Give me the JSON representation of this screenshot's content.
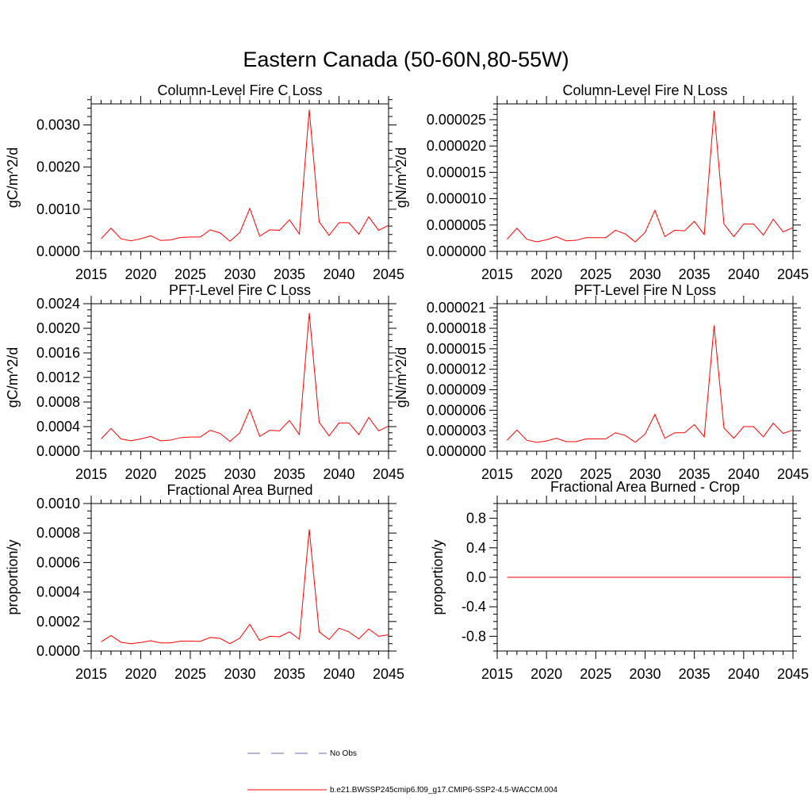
{
  "page_title": "Eastern Canada (50-60N,80-55W)",
  "legend": {
    "obs_label": "No Obs",
    "model_label": "b.e21.BWSSP245cmip6.f09_g17.CMIP6-SSP2-4.5-WACCM.004",
    "obs_color": "#6b6bb4",
    "model_color": "#ff0000"
  },
  "chart_data": [
    {
      "type": "line",
      "title": "Column-Level Fire C Loss",
      "xlabel": "",
      "ylabel": "gC/m^2/d",
      "xlim": [
        2015,
        2045
      ],
      "ylim": [
        0,
        0.0035
      ],
      "xticks": [
        2015,
        2020,
        2025,
        2030,
        2035,
        2040,
        2045
      ],
      "yticks": [
        0,
        0.001,
        0.002,
        0.003
      ],
      "ytick_labels": [
        "0.0000",
        "0.0010",
        "0.0020",
        "0.0030"
      ],
      "yminor_step": 0.0002,
      "series": [
        {
          "name": "b.e21.BWSSP245cmip6.f09_g17.CMIP6-SSP2-4.5-WACCM.004",
          "color": "#ff0000",
          "x": [
            2016,
            2017,
            2018,
            2019,
            2020,
            2021,
            2022,
            2023,
            2024,
            2025,
            2026,
            2027,
            2028,
            2029,
            2030,
            2031,
            2032,
            2033,
            2034,
            2035,
            2036,
            2037,
            2038,
            2039,
            2040,
            2041,
            2042,
            2043,
            2044,
            2045
          ],
          "values": [
            0.0003,
            0.00055,
            0.0003,
            0.00025,
            0.0003,
            0.00037,
            0.00026,
            0.00027,
            0.00033,
            0.00034,
            0.00034,
            0.00051,
            0.00044,
            0.00024,
            0.00045,
            0.00102,
            0.00036,
            0.00051,
            0.0005,
            0.00075,
            0.00041,
            0.00336,
            0.0007,
            0.00038,
            0.00068,
            0.00068,
            0.00041,
            0.00082,
            0.0005,
            0.00062
          ]
        }
      ]
    },
    {
      "type": "line",
      "title": "Column-Level Fire N Loss",
      "xlabel": "",
      "ylabel": "gN/m^2/d",
      "xlim": [
        2015,
        2045
      ],
      "ylim": [
        0,
        2.8e-05
      ],
      "xticks": [
        2015,
        2020,
        2025,
        2030,
        2035,
        2040,
        2045
      ],
      "yticks": [
        0,
        5e-06,
        1e-05,
        1.5e-05,
        2e-05,
        2.5e-05
      ],
      "ytick_labels": [
        "0.000000",
        "0.000005",
        "0.000010",
        "0.000015",
        "0.000020",
        "0.000025"
      ],
      "yminor_step": 1e-06,
      "series": [
        {
          "name": "b.e21.BWSSP245cmip6.f09_g17.CMIP6-SSP2-4.5-WACCM.004",
          "color": "#ff0000",
          "x": [
            2016,
            2017,
            2018,
            2019,
            2020,
            2021,
            2022,
            2023,
            2024,
            2025,
            2026,
            2027,
            2028,
            2029,
            2030,
            2031,
            2032,
            2033,
            2034,
            2035,
            2036,
            2037,
            2038,
            2039,
            2040,
            2041,
            2042,
            2043,
            2044,
            2045
          ],
          "values": [
            2.3e-06,
            4.4e-06,
            2.3e-06,
            1.8e-06,
            2.2e-06,
            2.8e-06,
            2e-06,
            2.1e-06,
            2.6e-06,
            2.6e-06,
            2.6e-06,
            4e-06,
            3.3e-06,
            1.8e-06,
            3.6e-06,
            7.8e-06,
            2.8e-06,
            4e-06,
            3.9e-06,
            5.7e-06,
            3.2e-06,
            2.67e-05,
            5.2e-06,
            2.8e-06,
            5.2e-06,
            5.2e-06,
            3.1e-06,
            6.1e-06,
            3.7e-06,
            4.5e-06
          ]
        }
      ]
    },
    {
      "type": "line",
      "title": "PFT-Level Fire C Loss",
      "xlabel": "",
      "ylabel": "gC/m^2/d",
      "xlim": [
        2015,
        2045
      ],
      "ylim": [
        0,
        0.0024
      ],
      "xticks": [
        2015,
        2020,
        2025,
        2030,
        2035,
        2040,
        2045
      ],
      "yticks": [
        0,
        0.0004,
        0.0008,
        0.0012,
        0.0016,
        0.002,
        0.0024
      ],
      "ytick_labels": [
        "0.0000",
        "0.0004",
        "0.0008",
        "0.0012",
        "0.0016",
        "0.0020",
        "0.0024"
      ],
      "yminor_step": 0.0001,
      "series": [
        {
          "name": "b.e21.BWSSP245cmip6.f09_g17.CMIP6-SSP2-4.5-WACCM.004",
          "color": "#ff0000",
          "x": [
            2016,
            2017,
            2018,
            2019,
            2020,
            2021,
            2022,
            2023,
            2024,
            2025,
            2026,
            2027,
            2028,
            2029,
            2030,
            2031,
            2032,
            2033,
            2034,
            2035,
            2036,
            2037,
            2038,
            2039,
            2040,
            2041,
            2042,
            2043,
            2044,
            2045
          ],
          "values": [
            0.0002,
            0.00037,
            0.0002,
            0.00017,
            0.0002,
            0.00024,
            0.00017,
            0.00018,
            0.00022,
            0.00023,
            0.00023,
            0.00034,
            0.00029,
            0.00016,
            0.0003,
            0.00068,
            0.00024,
            0.00034,
            0.00033,
            0.0005,
            0.00027,
            0.00225,
            0.00047,
            0.00025,
            0.00046,
            0.00046,
            0.00027,
            0.00055,
            0.00033,
            0.00041
          ]
        }
      ]
    },
    {
      "type": "line",
      "title": "PFT-Level Fire N Loss",
      "xlabel": "",
      "ylabel": "gN/m^2/d",
      "xlim": [
        2015,
        2045
      ],
      "ylim": [
        0,
        2.16e-05
      ],
      "xticks": [
        2015,
        2020,
        2025,
        2030,
        2035,
        2040,
        2045
      ],
      "yticks": [
        0,
        3e-06,
        6e-06,
        9e-06,
        1.2e-05,
        1.5e-05,
        1.8e-05,
        2.1e-05
      ],
      "ytick_labels": [
        "0.000000",
        "0.000003",
        "0.000006",
        "0.000009",
        "0.000012",
        "0.000015",
        "0.000018",
        "0.000021"
      ],
      "yminor_step": 6e-07,
      "series": [
        {
          "name": "b.e21.BWSSP245cmip6.f09_g17.CMIP6-SSP2-4.5-WACCM.004",
          "color": "#ff0000",
          "x": [
            2016,
            2017,
            2018,
            2019,
            2020,
            2021,
            2022,
            2023,
            2024,
            2025,
            2026,
            2027,
            2028,
            2029,
            2030,
            2031,
            2032,
            2033,
            2034,
            2035,
            2036,
            2037,
            2038,
            2039,
            2040,
            2041,
            2042,
            2043,
            2044,
            2045
          ],
          "values": [
            1.6e-06,
            3.1e-06,
            1.6e-06,
            1.3e-06,
            1.5e-06,
            1.9e-06,
            1.4e-06,
            1.4e-06,
            1.8e-06,
            1.8e-06,
            1.8e-06,
            2.7e-06,
            2.3e-06,
            1.3e-06,
            2.5e-06,
            5.4e-06,
            1.9e-06,
            2.7e-06,
            2.7e-06,
            3.9e-06,
            2.1e-06,
            1.84e-05,
            3.4e-06,
            1.9e-06,
            3.6e-06,
            3.6e-06,
            2.1e-06,
            4.1e-06,
            2.6e-06,
            3.1e-06
          ]
        }
      ]
    },
    {
      "type": "line",
      "title": "Fractional Area Burned",
      "xlabel": "",
      "ylabel": "proportion/y",
      "xlim": [
        2015,
        2045
      ],
      "ylim": [
        0,
        0.001
      ],
      "xticks": [
        2015,
        2020,
        2025,
        2030,
        2035,
        2040,
        2045
      ],
      "yticks": [
        0,
        0.0002,
        0.0004,
        0.0006,
        0.0008,
        0.001
      ],
      "ytick_labels": [
        "0.0000",
        "0.0002",
        "0.0004",
        "0.0006",
        "0.0008",
        "0.0010"
      ],
      "yminor_step": 5e-05,
      "series": [
        {
          "name": "b.e21.BWSSP245cmip6.f09_g17.CMIP6-SSP2-4.5-WACCM.004",
          "color": "#ff0000",
          "x": [
            2016,
            2017,
            2018,
            2019,
            2020,
            2021,
            2022,
            2023,
            2024,
            2025,
            2026,
            2027,
            2028,
            2029,
            2030,
            2031,
            2032,
            2033,
            2034,
            2035,
            2036,
            2037,
            2038,
            2039,
            2040,
            2041,
            2042,
            2043,
            2044,
            2045
          ],
          "values": [
            6.3e-05,
            0.000105,
            6e-05,
            5e-05,
            5.8e-05,
            7e-05,
            5.5e-05,
            5.5e-05,
            6.7e-05,
            6.7e-05,
            6.5e-05,
            9.2e-05,
            8.6e-05,
            5e-05,
            8.8e-05,
            0.000181,
            7.1e-05,
            0.0001,
            9.7e-05,
            0.00013,
            8e-05,
            0.000825,
            0.00013,
            7.8e-05,
            0.000155,
            0.00013,
            8.2e-05,
            0.00015,
            0.0001,
            0.00011
          ]
        }
      ]
    },
    {
      "type": "line",
      "title": "Fractional Area Burned - Crop",
      "xlabel": "",
      "ylabel": "proportion/y",
      "xlim": [
        2015,
        2045
      ],
      "ylim": [
        -1,
        1
      ],
      "xticks": [
        2015,
        2020,
        2025,
        2030,
        2035,
        2040,
        2045
      ],
      "yticks": [
        -0.8,
        -0.4,
        0,
        0.4,
        0.8
      ],
      "ytick_labels": [
        "-0.8",
        "-0.4",
        "0.0",
        "0.4",
        "0.8"
      ],
      "yminor_step": 0.1,
      "series": [
        {
          "name": "b.e21.BWSSP245cmip6.f09_g17.CMIP6-SSP2-4.5-WACCM.004",
          "color": "#ff0000",
          "x": [
            2016,
            2017,
            2018,
            2019,
            2020,
            2021,
            2022,
            2023,
            2024,
            2025,
            2026,
            2027,
            2028,
            2029,
            2030,
            2031,
            2032,
            2033,
            2034,
            2035,
            2036,
            2037,
            2038,
            2039,
            2040,
            2041,
            2042,
            2043,
            2044,
            2045
          ],
          "values": [
            0,
            0,
            0,
            0,
            0,
            0,
            0,
            0,
            0,
            0,
            0,
            0,
            0,
            0,
            0,
            0,
            0,
            0,
            0,
            0,
            0,
            0,
            0,
            0,
            0,
            0,
            0,
            0,
            0,
            0
          ]
        }
      ]
    }
  ]
}
